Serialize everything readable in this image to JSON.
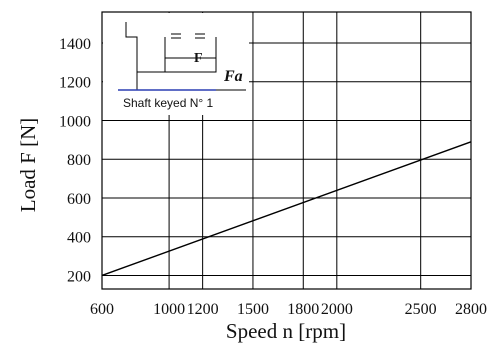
{
  "chart_data": {
    "type": "line",
    "xlabel": "Speed  n  [rpm]",
    "ylabel": "Load  F  [N]",
    "xlim": [
      600,
      2800
    ],
    "ylim": [
      130,
      1560
    ],
    "x_ticks": [
      600,
      1000,
      1200,
      1500,
      1800,
      2000,
      2500,
      2800
    ],
    "y_ticks": [
      200,
      400,
      600,
      800,
      1000,
      1200,
      1400
    ],
    "grid": true,
    "series": [
      {
        "x": [
          600,
          2800
        ],
        "y": [
          200,
          890
        ]
      }
    ]
  },
  "inset": {
    "force_label": "F",
    "axial_label": "Fa",
    "caption": "Shaft  keyed  N° 1",
    "marks": "=   ="
  }
}
